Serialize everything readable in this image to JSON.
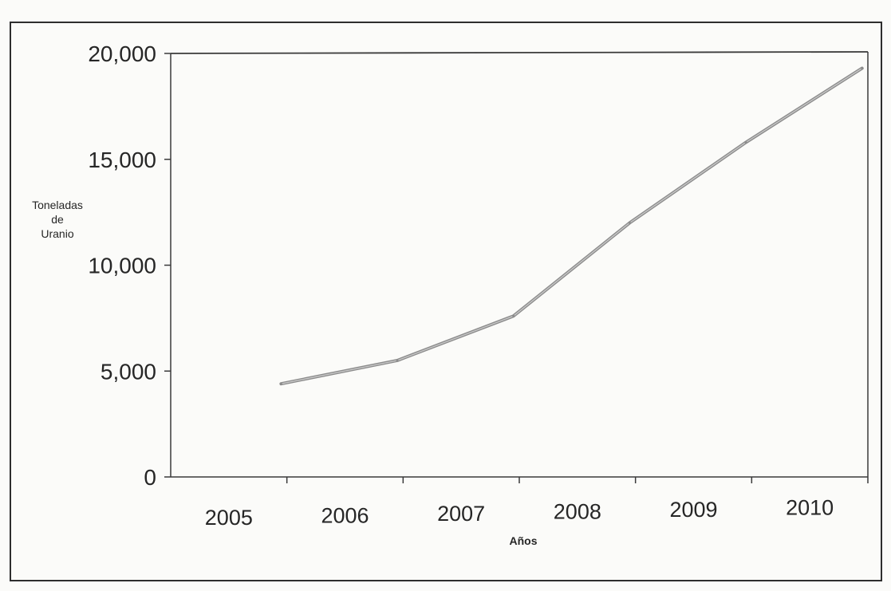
{
  "chart_data": {
    "type": "line",
    "title": "",
    "xlabel": "Años",
    "ylabel_lines": [
      "Toneladas",
      "de",
      "Uranio"
    ],
    "x": [
      "2005",
      "2006",
      "2007",
      "2008",
      "2009",
      "2010"
    ],
    "series": [
      {
        "values": [
          4400,
          5500,
          7600,
          12000,
          15800,
          19300
        ]
      }
    ],
    "ylim": [
      0,
      20000
    ],
    "y_ticks": [
      {
        "value": 0,
        "label": "0"
      },
      {
        "value": 5000,
        "label": "5,000"
      },
      {
        "value": 10000,
        "label": "10,000"
      },
      {
        "value": 15000,
        "label": "15,000"
      },
      {
        "value": 20000,
        "label": "20,000"
      }
    ],
    "grid": false,
    "legend": "none",
    "colors": {
      "line": "#8c8c8c",
      "line_highlight": "#c9c9c9",
      "axis": "#3a3a3a",
      "frame": "#2e2e2e",
      "background": "#fbfbf9"
    }
  }
}
